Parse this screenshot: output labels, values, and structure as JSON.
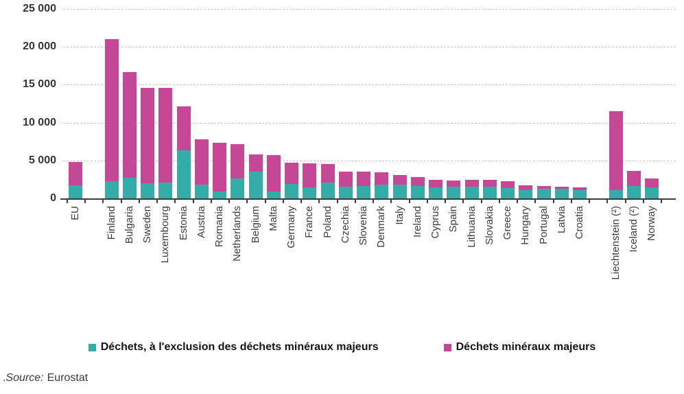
{
  "chart_data": {
    "type": "stacked-bar",
    "title": "",
    "categories": [
      "EU",
      "Finland",
      "Bulgaria",
      "Sweden",
      "Luxembourg",
      "Estonia",
      "Austria",
      "Romania",
      "Netherlands",
      "Belgium",
      "Malta",
      "Germany",
      "France",
      "Poland",
      "Czechia",
      "Slovenia",
      "Denmark",
      "Italy",
      "Ireland",
      "Cyprus",
      "Spain",
      "Lithuania",
      "Slovakia",
      "Greece",
      "Hungary",
      "Portugal",
      "Latvia",
      "Croatia",
      "Liechtenstein (²)",
      "Iceland (²)",
      "Norway"
    ],
    "series": [
      {
        "name": "Déchets, à l'exclusion des déchets minéraux majeurs",
        "color": "#34ACA7",
        "values": [
          1700,
          2300,
          2700,
          2000,
          2100,
          6300,
          1800,
          900,
          2600,
          3500,
          950,
          1900,
          1450,
          2100,
          1550,
          1600,
          1840,
          1840,
          1650,
          1420,
          1510,
          1570,
          1510,
          1330,
          1060,
          1270,
          1270,
          1110,
          1100,
          1630,
          1470
        ]
      },
      {
        "name": "Déchets minéraux majeurs",
        "color": "#C54795",
        "values": [
          3100,
          18700,
          14000,
          12600,
          12500,
          5800,
          6000,
          6400,
          4550,
          2330,
          4750,
          2840,
          3150,
          2400,
          2020,
          1940,
          1640,
          1210,
          1160,
          1040,
          830,
          890,
          900,
          910,
          680,
          400,
          240,
          380,
          10400,
          2020,
          1130
        ]
      }
    ],
    "ylim": [
      0,
      25000
    ],
    "yticks": [
      {
        "value": 0,
        "label": "0"
      },
      {
        "value": 5000,
        "label": "5 000"
      },
      {
        "value": 10000,
        "label": "10 000"
      },
      {
        "value": 15000,
        "label": "15 000"
      },
      {
        "value": 20000,
        "label": "20 000"
      },
      {
        "value": 25000,
        "label": "25 000"
      }
    ],
    "grid": "dashed-horizontal",
    "legend_position": "bottom",
    "separators_after": [
      "EU",
      "Croatia"
    ]
  },
  "source": {
    "prefix": ".",
    "label": "Source:",
    "value": "Eurostat"
  }
}
